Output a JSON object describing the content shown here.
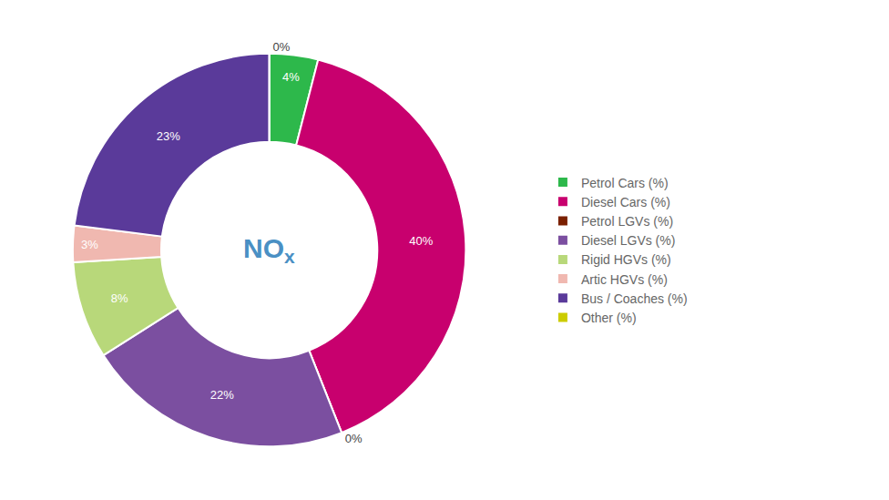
{
  "chart_data": {
    "type": "pie",
    "categories": [
      "Petrol Cars (%)",
      "Diesel Cars (%)",
      "Petrol LGVs (%)",
      "Diesel LGVs (%)",
      "Rigid HGVs (%)",
      "Artic HGVs (%)",
      "Bus / Coaches (%)",
      "Other (%)"
    ],
    "values": [
      4,
      40,
      0,
      22,
      8,
      3,
      23,
      0
    ],
    "value_labels": [
      "4%",
      "40%",
      "0%",
      "22%",
      "8%",
      "3%",
      "23%",
      "0%"
    ],
    "colors": [
      "#2db84b",
      "#c8006e",
      "#7a2000",
      "#7b4fa0",
      "#b8d87a",
      "#f0b8b0",
      "#5a3a9a",
      "#cccc00"
    ],
    "data_labels": true,
    "legend": "right",
    "annotations": [
      {
        "text": "NO",
        "subscript": "x"
      }
    ]
  }
}
